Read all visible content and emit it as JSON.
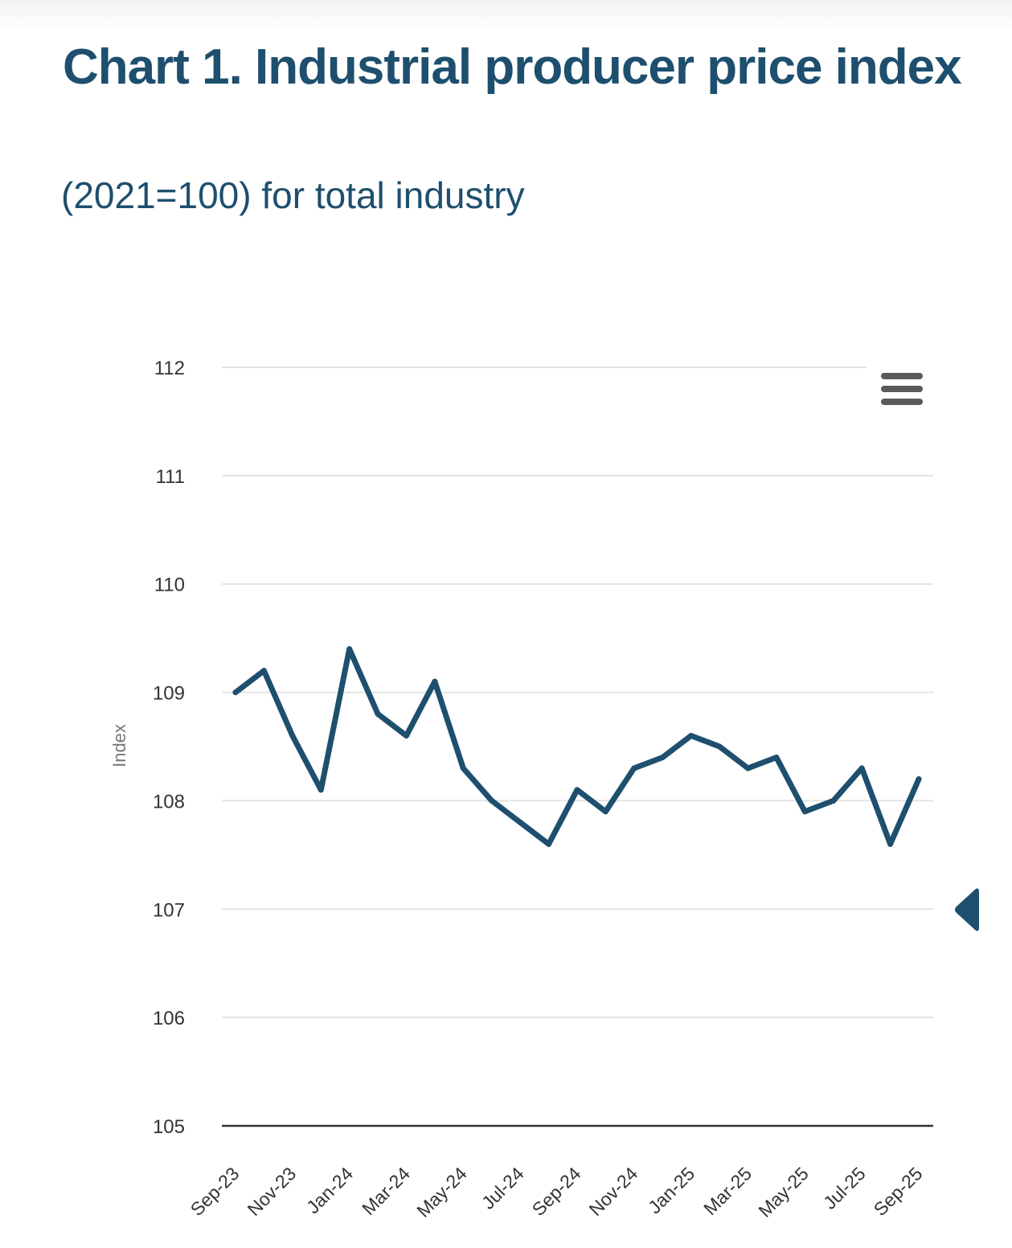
{
  "title": "Chart 1. Industrial producer price index",
  "subtitle": "(2021=100) for total industry",
  "icons": {
    "menu": "hamburger-menu-icon",
    "nav": "left-triangle-arrow-icon"
  },
  "colors": {
    "title": "#1e4f6e",
    "series_line": "#1e4f6e",
    "grid": "#e3e3e3",
    "baseline": "#333333",
    "tick_text": "#333333",
    "axis_label": "#777777"
  },
  "chart_data": {
    "type": "line",
    "ylabel": "Index",
    "xlabel": "",
    "ylim": [
      105,
      112
    ],
    "yticks": [
      105,
      106,
      107,
      108,
      109,
      110,
      111,
      112
    ],
    "grid": true,
    "legend": "none",
    "x": [
      "Sep-23",
      "Oct-23",
      "Nov-23",
      "Dec-23",
      "Jan-24",
      "Feb-24",
      "Mar-24",
      "Apr-24",
      "May-24",
      "Jun-24",
      "Jul-24",
      "Aug-24",
      "Sep-24",
      "Oct-24",
      "Nov-24",
      "Dec-24",
      "Jan-25",
      "Feb-25",
      "Mar-25",
      "Apr-25",
      "May-25",
      "Jun-25",
      "Jul-25",
      "Aug-25",
      "Sep-25"
    ],
    "xtick_labels": [
      "Sep-23",
      "Nov-23",
      "Jan-24",
      "Mar-24",
      "May-24",
      "Jul-24",
      "Sep-24",
      "Nov-24",
      "Jan-25",
      "Mar-25",
      "May-25",
      "Jul-25",
      "Sep-25"
    ],
    "series": [
      {
        "values": [
          109.0,
          109.2,
          108.6,
          108.1,
          109.4,
          108.8,
          108.6,
          109.1,
          108.3,
          108.0,
          107.8,
          107.6,
          108.1,
          107.9,
          108.3,
          108.4,
          108.6,
          108.5,
          108.3,
          108.4,
          107.9,
          108.0,
          108.3,
          107.6,
          108.2
        ]
      }
    ]
  }
}
